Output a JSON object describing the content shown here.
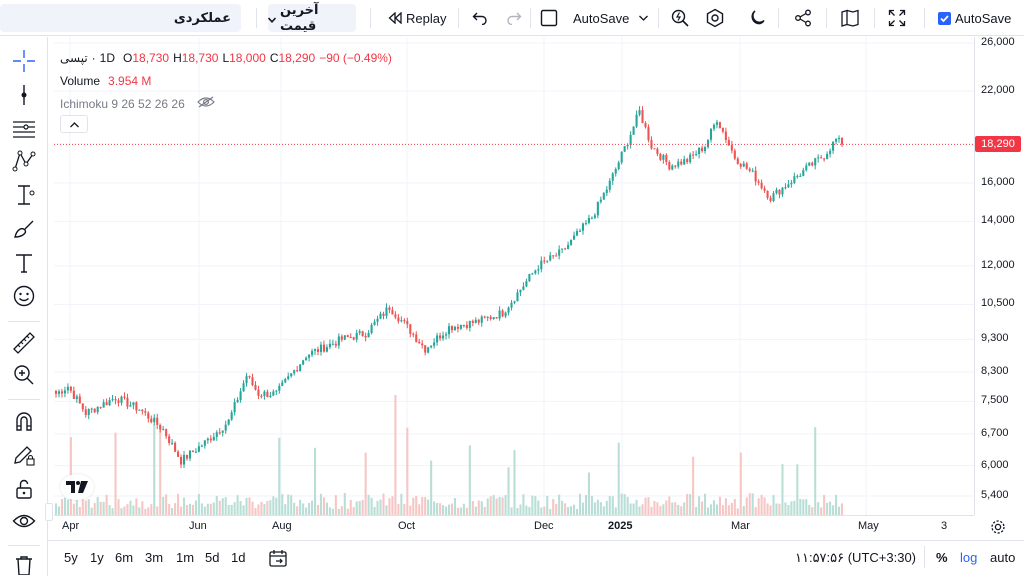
{
  "toolbar": {
    "symbol_label": "عملکردی",
    "price_type_label": "آخرین قیمت",
    "replay_label": "Replay",
    "autosave_menu_label": "AutoSave",
    "autosave_checkbox_label": "AutoSave",
    "autosave_checked": true
  },
  "legend": {
    "symbol": "تپسی",
    "interval": "1D",
    "open_key": "O",
    "open": "18,730",
    "high_key": "H",
    "high": "18,730",
    "low_key": "L",
    "low": "18,000",
    "close_key": "C",
    "close": "18,290",
    "change": "−90 (−0.49%)",
    "volume_label": "Volume",
    "volume_value": "3.954 M",
    "indicator": "Ichimoku 9 26 52 26 26"
  },
  "price_axis": {
    "labels": [
      "26,000",
      "22,000",
      "18,290",
      "16,000",
      "14,000",
      "12,000",
      "10,500",
      "9,300",
      "8,300",
      "7,500",
      "6,700",
      "6,000",
      "5,400"
    ],
    "last_price": "18,290",
    "last_price_color": "#f23645"
  },
  "time_axis": {
    "labels": [
      "Apr",
      "Jun",
      "Aug",
      "Oct",
      "Dec",
      "2025",
      "Mar",
      "May",
      "3"
    ]
  },
  "bottom": {
    "ranges": [
      "5y",
      "1y",
      "6m",
      "3m",
      "1m",
      "5d",
      "1d"
    ],
    "time": "۱۱:۵۷:۵۶ (UTC+3:30)",
    "percent_label": "%",
    "log_label": "log",
    "auto_label": "auto"
  },
  "colors": {
    "up": "#26a69a",
    "down": "#ef5350",
    "accent": "#2962ff"
  },
  "chart_data": {
    "type": "candlestick",
    "log_scale": true,
    "y_range": [
      5000,
      27000
    ],
    "series_anchors": [
      {
        "t": 0,
        "p": 7700
      },
      {
        "t": 4,
        "p": 7900
      },
      {
        "t": 10,
        "p": 7200
      },
      {
        "t": 20,
        "p": 7600
      },
      {
        "t": 28,
        "p": 7300
      },
      {
        "t": 36,
        "p": 6800
      },
      {
        "t": 42,
        "p": 6100
      },
      {
        "t": 50,
        "p": 6500
      },
      {
        "t": 58,
        "p": 7000
      },
      {
        "t": 64,
        "p": 8200
      },
      {
        "t": 68,
        "p": 7700
      },
      {
        "t": 74,
        "p": 7700
      },
      {
        "t": 84,
        "p": 8800
      },
      {
        "t": 96,
        "p": 9300
      },
      {
        "t": 104,
        "p": 9500
      },
      {
        "t": 112,
        "p": 10400
      },
      {
        "t": 118,
        "p": 9700
      },
      {
        "t": 124,
        "p": 9000
      },
      {
        "t": 132,
        "p": 9700
      },
      {
        "t": 142,
        "p": 9900
      },
      {
        "t": 150,
        "p": 10200
      },
      {
        "t": 162,
        "p": 12000
      },
      {
        "t": 170,
        "p": 12600
      },
      {
        "t": 180,
        "p": 14200
      },
      {
        "t": 186,
        "p": 16000
      },
      {
        "t": 192,
        "p": 18500
      },
      {
        "t": 196,
        "p": 20500
      },
      {
        "t": 200,
        "p": 18200
      },
      {
        "t": 206,
        "p": 17000
      },
      {
        "t": 212,
        "p": 17300
      },
      {
        "t": 218,
        "p": 18200
      },
      {
        "t": 222,
        "p": 20000
      },
      {
        "t": 228,
        "p": 17500
      },
      {
        "t": 234,
        "p": 16500
      },
      {
        "t": 240,
        "p": 15200
      },
      {
        "t": 246,
        "p": 16000
      },
      {
        "t": 252,
        "p": 16800
      },
      {
        "t": 258,
        "p": 17600
      },
      {
        "t": 262,
        "p": 18600
      },
      {
        "t": 264,
        "p": 18290
      }
    ],
    "count": 265
  }
}
